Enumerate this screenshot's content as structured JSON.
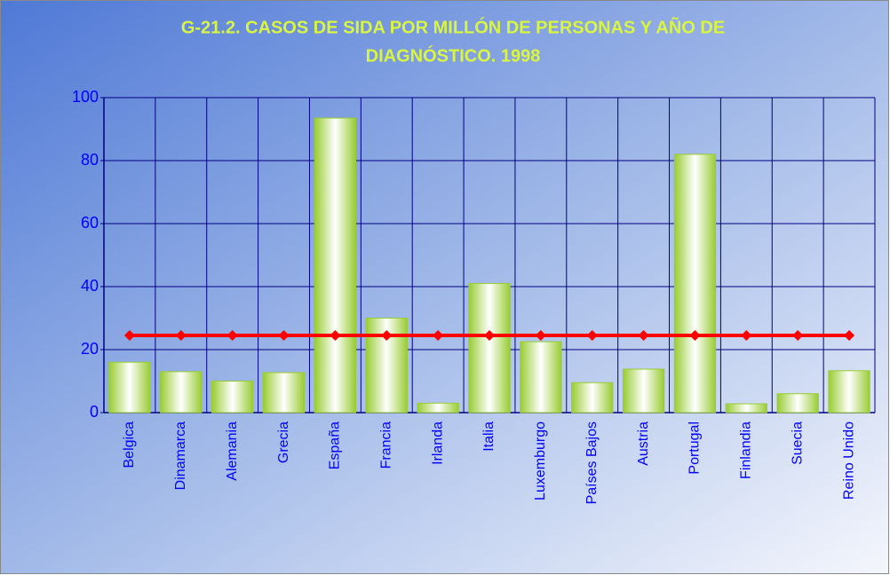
{
  "chart_data": {
    "type": "bar",
    "title": [
      "G-21.2. CASOS DE SIDA POR MILLÓN DE PERSONAS Y AÑO DE",
      "DIAGNÓSTICO. 1998"
    ],
    "categories": [
      "Belgica",
      "Dinamarca",
      "Alemania",
      "Grecia",
      "España",
      "Francia",
      "Irlanda",
      "Italia",
      "Luxemburgo",
      "Países Bajos",
      "Austria",
      "Portugal",
      "Finlandia",
      "Suecia",
      "Reino Unido"
    ],
    "series": [
      {
        "type": "bar",
        "color": "#99cc33",
        "values": [
          16,
          13,
          10,
          12.7,
          93.5,
          30,
          3,
          41,
          22.5,
          9.5,
          13.8,
          82,
          2.8,
          6,
          13.3
        ]
      },
      {
        "type": "line",
        "color": "#ff0000",
        "values": [
          24.5,
          24.5,
          24.5,
          24.5,
          24.5,
          24.5,
          24.5,
          24.5,
          24.5,
          24.5,
          24.5,
          24.5,
          24.5,
          24.5,
          24.5
        ]
      }
    ],
    "ylim": [
      0,
      100
    ],
    "yticks": [
      0,
      20,
      40,
      60,
      80,
      100
    ],
    "grid": true
  }
}
